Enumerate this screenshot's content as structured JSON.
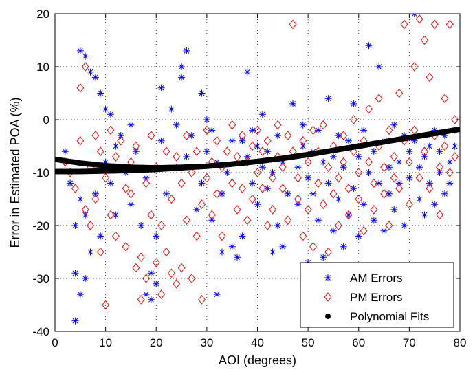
{
  "chart_data": {
    "type": "scatter",
    "xlabel": "AOI (degrees)",
    "ylabel": "Error in Estimated POA (%)",
    "xlim": [
      0,
      80
    ],
    "ylim": [
      -40,
      20
    ],
    "xticks": [
      0,
      10,
      20,
      30,
      40,
      50,
      60,
      70,
      80
    ],
    "yticks": [
      -40,
      -30,
      -20,
      -10,
      0,
      10,
      20
    ],
    "grid": true,
    "grid_style": "dotted",
    "legend_position": "bottom-right",
    "series": [
      {
        "name": "AM Errors",
        "marker": "asterisk",
        "color": "#0000ff",
        "points": [
          [
            2,
            -6
          ],
          [
            3,
            -12
          ],
          [
            4,
            -20
          ],
          [
            4,
            -29
          ],
          [
            4,
            -38
          ],
          [
            5,
            -15
          ],
          [
            5,
            -33
          ],
          [
            5,
            13
          ],
          [
            6,
            12
          ],
          [
            6,
            -18
          ],
          [
            6,
            -30
          ],
          [
            7,
            -25
          ],
          [
            7,
            9
          ],
          [
            8,
            8
          ],
          [
            8,
            -14
          ],
          [
            9,
            5
          ],
          [
            9,
            -22
          ],
          [
            10,
            2
          ],
          [
            10,
            -8
          ],
          [
            11,
            1
          ],
          [
            11,
            -12
          ],
          [
            12,
            -5
          ],
          [
            12,
            -18
          ],
          [
            13,
            -3
          ],
          [
            14,
            -10
          ],
          [
            15,
            -1
          ],
          [
            15,
            -16
          ],
          [
            16,
            -6
          ],
          [
            17,
            -20
          ],
          [
            18,
            -33
          ],
          [
            18,
            -11
          ],
          [
            19,
            -29
          ],
          [
            19,
            -34
          ],
          [
            20,
            -22
          ],
          [
            20,
            -31
          ],
          [
            21,
            -4
          ],
          [
            21,
            6
          ],
          [
            22,
            -14
          ],
          [
            23,
            2
          ],
          [
            24,
            -9
          ],
          [
            24,
            -1
          ],
          [
            25,
            10
          ],
          [
            25,
            8
          ],
          [
            26,
            13
          ],
          [
            26,
            -7
          ],
          [
            27,
            -3
          ],
          [
            28,
            -17
          ],
          [
            29,
            -12
          ],
          [
            29,
            5
          ],
          [
            30,
            0
          ],
          [
            30,
            -6
          ],
          [
            31,
            -2
          ],
          [
            31,
            -19
          ],
          [
            32,
            -8
          ],
          [
            32,
            -33
          ],
          [
            33,
            -14
          ],
          [
            33,
            -25
          ],
          [
            34,
            -10
          ],
          [
            35,
            -4
          ],
          [
            35,
            -24
          ],
          [
            36,
            -26
          ],
          [
            37,
            -22
          ],
          [
            37,
            -4
          ],
          [
            38,
            -7
          ],
          [
            38,
            9
          ],
          [
            39,
            -12
          ],
          [
            39,
            -2
          ],
          [
            40,
            -5
          ],
          [
            40,
            -16
          ],
          [
            41,
            -9
          ],
          [
            41,
            1
          ],
          [
            42,
            -13
          ],
          [
            42,
            -6
          ],
          [
            43,
            -10
          ],
          [
            43,
            -25
          ],
          [
            44,
            -3
          ],
          [
            44,
            -20
          ],
          [
            45,
            -8
          ],
          [
            45,
            -24
          ],
          [
            46,
            -14
          ],
          [
            47,
            3
          ],
          [
            48,
            -9
          ],
          [
            48,
            -16
          ],
          [
            49,
            -5
          ],
          [
            49,
            -1
          ],
          [
            50,
            -11
          ],
          [
            50,
            -27
          ],
          [
            51,
            -6
          ],
          [
            51,
            -14
          ],
          [
            52,
            -2
          ],
          [
            52,
            -19
          ],
          [
            53,
            -8
          ],
          [
            53,
            -26
          ],
          [
            54,
            -12
          ],
          [
            54,
            4
          ],
          [
            55,
            -7
          ],
          [
            55,
            -21
          ],
          [
            56,
            -15
          ],
          [
            56,
            -3
          ],
          [
            57,
            -9
          ],
          [
            57,
            -24
          ],
          [
            58,
            -4
          ],
          [
            58,
            -18
          ],
          [
            59,
            -13
          ],
          [
            59,
            3
          ],
          [
            60,
            -7
          ],
          [
            60,
            -22
          ],
          [
            61,
            -2
          ],
          [
            61,
            -16
          ],
          [
            62,
            -10
          ],
          [
            62,
            14
          ],
          [
            63,
            -6
          ],
          [
            63,
            -19
          ],
          [
            64,
            -12
          ],
          [
            64,
            10
          ],
          [
            65,
            -4
          ],
          [
            65,
            -21
          ],
          [
            66,
            -9
          ],
          [
            66,
            -14
          ],
          [
            67,
            -1
          ],
          [
            67,
            -17
          ],
          [
            68,
            -8
          ],
          [
            68,
            -12
          ],
          [
            69,
            -3
          ],
          [
            69,
            -20
          ],
          [
            70,
            -6
          ],
          [
            70,
            -11
          ],
          [
            71,
            -4
          ],
          [
            71,
            20
          ],
          [
            72,
            -15
          ],
          [
            72,
            -9
          ],
          [
            73,
            -7
          ],
          [
            73,
            -18
          ],
          [
            74,
            -12
          ],
          [
            74,
            -5
          ],
          [
            75,
            -2
          ],
          [
            75,
            -16
          ],
          [
            76,
            -10
          ],
          [
            76,
            -6
          ],
          [
            77,
            -3
          ],
          [
            77,
            -14
          ],
          [
            78,
            -8
          ],
          [
            78,
            -12
          ],
          [
            79,
            -5
          ],
          [
            79,
            -2
          ]
        ]
      },
      {
        "name": "PM Errors",
        "marker": "diamond",
        "color": "#ff0000",
        "points": [
          [
            2,
            -8
          ],
          [
            3,
            -10
          ],
          [
            4,
            -13
          ],
          [
            5,
            6
          ],
          [
            5,
            -4
          ],
          [
            6,
            10
          ],
          [
            6,
            -17
          ],
          [
            7,
            -9
          ],
          [
            7,
            -20
          ],
          [
            8,
            -3
          ],
          [
            8,
            -15
          ],
          [
            9,
            -25
          ],
          [
            9,
            -6
          ],
          [
            10,
            -11
          ],
          [
            10,
            -35
          ],
          [
            11,
            -18
          ],
          [
            11,
            -2
          ],
          [
            12,
            -7
          ],
          [
            12,
            -22
          ],
          [
            13,
            -4
          ],
          [
            14,
            -13
          ],
          [
            14,
            -24
          ],
          [
            15,
            -8
          ],
          [
            15,
            -14
          ],
          [
            16,
            -28
          ],
          [
            16,
            -5
          ],
          [
            17,
            -26
          ],
          [
            17,
            -34
          ],
          [
            18,
            -12
          ],
          [
            18,
            -30
          ],
          [
            19,
            -18
          ],
          [
            19,
            -3
          ],
          [
            20,
            -27
          ],
          [
            20,
            -9
          ],
          [
            21,
            -20
          ],
          [
            21,
            -33
          ],
          [
            22,
            -6
          ],
          [
            22,
            -25
          ],
          [
            23,
            -15
          ],
          [
            23,
            -29
          ],
          [
            24,
            -31
          ],
          [
            24,
            -7
          ],
          [
            25,
            -12
          ],
          [
            25,
            -28
          ],
          [
            26,
            -19
          ],
          [
            26,
            -3
          ],
          [
            27,
            -10
          ],
          [
            27,
            -30
          ],
          [
            28,
            -6
          ],
          [
            28,
            -22
          ],
          [
            29,
            -16
          ],
          [
            29,
            -34
          ],
          [
            30,
            -11
          ],
          [
            30,
            -2
          ],
          [
            31,
            -8
          ],
          [
            31,
            -18
          ],
          [
            32,
            -4
          ],
          [
            32,
            -14
          ],
          [
            33,
            -9
          ],
          [
            33,
            -22
          ],
          [
            34,
            -6
          ],
          [
            35,
            -12
          ],
          [
            35,
            -1
          ],
          [
            36,
            -7
          ],
          [
            36,
            -17
          ],
          [
            37,
            -3
          ],
          [
            37,
            -13
          ],
          [
            38,
            -8
          ],
          [
            38,
            -19
          ],
          [
            39,
            -5
          ],
          [
            39,
            -15
          ],
          [
            40,
            -10
          ],
          [
            40,
            -2
          ],
          [
            41,
            -13
          ],
          [
            41,
            -6
          ],
          [
            42,
            -20
          ],
          [
            42,
            -4
          ],
          [
            43,
            -11
          ],
          [
            43,
            -17
          ],
          [
            44,
            -7
          ],
          [
            44,
            -1
          ],
          [
            45,
            -13
          ],
          [
            45,
            -9
          ],
          [
            46,
            -19
          ],
          [
            46,
            -3
          ],
          [
            47,
            -6
          ],
          [
            47,
            18
          ],
          [
            48,
            -11
          ],
          [
            48,
            -15
          ],
          [
            49,
            -22
          ],
          [
            49,
            -4
          ],
          [
            50,
            -8
          ],
          [
            50,
            -17
          ],
          [
            51,
            -2
          ],
          [
            51,
            -24
          ],
          [
            52,
            -12
          ],
          [
            52,
            -6
          ],
          [
            53,
            -16
          ],
          [
            53,
            -1
          ],
          [
            54,
            -9
          ],
          [
            54,
            -25
          ],
          [
            55,
            -5
          ],
          [
            55,
            -14
          ],
          [
            56,
            -11
          ],
          [
            56,
            -20
          ],
          [
            57,
            -3
          ],
          [
            57,
            -8
          ],
          [
            58,
            -13
          ],
          [
            58,
            -18
          ],
          [
            59,
            -6
          ],
          [
            59,
            0
          ],
          [
            60,
            -10
          ],
          [
            60,
            -15
          ],
          [
            61,
            -4
          ],
          [
            61,
            -21
          ],
          [
            62,
            -8
          ],
          [
            62,
            2
          ],
          [
            63,
            -12
          ],
          [
            63,
            -17
          ],
          [
            64,
            -5
          ],
          [
            64,
            4
          ],
          [
            65,
            -9
          ],
          [
            65,
            -14
          ],
          [
            66,
            -2
          ],
          [
            66,
            -20
          ],
          [
            67,
            -7
          ],
          [
            67,
            -11
          ],
          [
            68,
            -13
          ],
          [
            68,
            5
          ],
          [
            69,
            -4
          ],
          [
            69,
            18
          ],
          [
            70,
            -8
          ],
          [
            70,
            -16
          ],
          [
            71,
            -2
          ],
          [
            71,
            10
          ],
          [
            72,
            -11
          ],
          [
            72,
            19
          ],
          [
            73,
            -6
          ],
          [
            73,
            15
          ],
          [
            74,
            -13
          ],
          [
            74,
            8
          ],
          [
            75,
            -3
          ],
          [
            75,
            18
          ],
          [
            76,
            -9
          ],
          [
            76,
            -18
          ],
          [
            77,
            4
          ],
          [
            77,
            -5
          ],
          [
            78,
            -10
          ],
          [
            78,
            18
          ],
          [
            79,
            -7
          ],
          [
            79,
            0
          ]
        ]
      },
      {
        "name": "Polynomial Fits",
        "marker": "filled-circle",
        "color": "#000000",
        "curves": [
          {
            "x": [
              0,
              5,
              10,
              15,
              20,
              25,
              30,
              35,
              40,
              45,
              50,
              55,
              60,
              65,
              70,
              75,
              80
            ],
            "y": [
              -7.5,
              -8.2,
              -8.7,
              -9.0,
              -9.1,
              -9.0,
              -8.8,
              -8.4,
              -7.9,
              -7.3,
              -6.6,
              -5.8,
              -5.0,
              -4.2,
              -3.4,
              -2.6,
              -1.8
            ]
          },
          {
            "x": [
              0,
              5,
              10,
              15,
              20,
              25,
              30,
              35,
              40,
              45,
              50,
              55,
              60,
              65,
              70,
              75,
              80
            ],
            "y": [
              -9.8,
              -9.8,
              -9.7,
              -9.6,
              -9.4,
              -9.1,
              -8.8,
              -8.4,
              -7.9,
              -7.3,
              -6.6,
              -5.8,
              -5.0,
              -4.2,
              -3.4,
              -2.6,
              -1.8
            ]
          }
        ]
      }
    ]
  }
}
